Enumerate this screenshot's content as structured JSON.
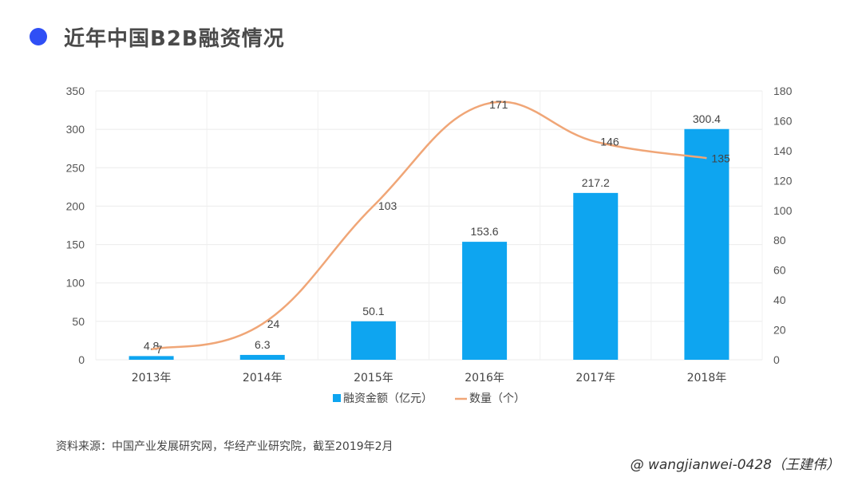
{
  "header": {
    "title": "近年中国B2B融资情况"
  },
  "chart_data": {
    "type": "bar",
    "categories": [
      "2013年",
      "2014年",
      "2015年",
      "2016年",
      "2017年",
      "2018年"
    ],
    "series": [
      {
        "name": "融资金额（亿元）",
        "type": "bar",
        "axis": "left",
        "values": [
          4.8,
          6.3,
          50.1,
          153.6,
          217.2,
          300.4
        ],
        "labels": [
          "4.8",
          "6.3",
          "50.1",
          "153.6",
          "217.2",
          "300.4"
        ],
        "color": "#0ea5f0"
      },
      {
        "name": "数量（个）",
        "type": "line",
        "axis": "right",
        "values": [
          7,
          24,
          103,
          171,
          146,
          135
        ],
        "labels": [
          "7",
          "24",
          "103",
          "171",
          "146",
          "135"
        ],
        "color": "#f0a677"
      }
    ],
    "y_left": {
      "min": 0,
      "max": 350,
      "ticks": [
        "0",
        "50",
        "100",
        "150",
        "200",
        "250",
        "300",
        "350"
      ]
    },
    "y_right": {
      "min": 0,
      "max": 180,
      "ticks": [
        "0",
        "20",
        "40",
        "60",
        "80",
        "100",
        "120",
        "140",
        "160",
        "180"
      ]
    },
    "grid": true,
    "legend_position": "bottom"
  },
  "footer": {
    "source": "资料来源：中国产业发展研究网，华经产业研究院，截至2019年2月",
    "watermark": "@ wangjianwei-0428（王建伟）"
  }
}
